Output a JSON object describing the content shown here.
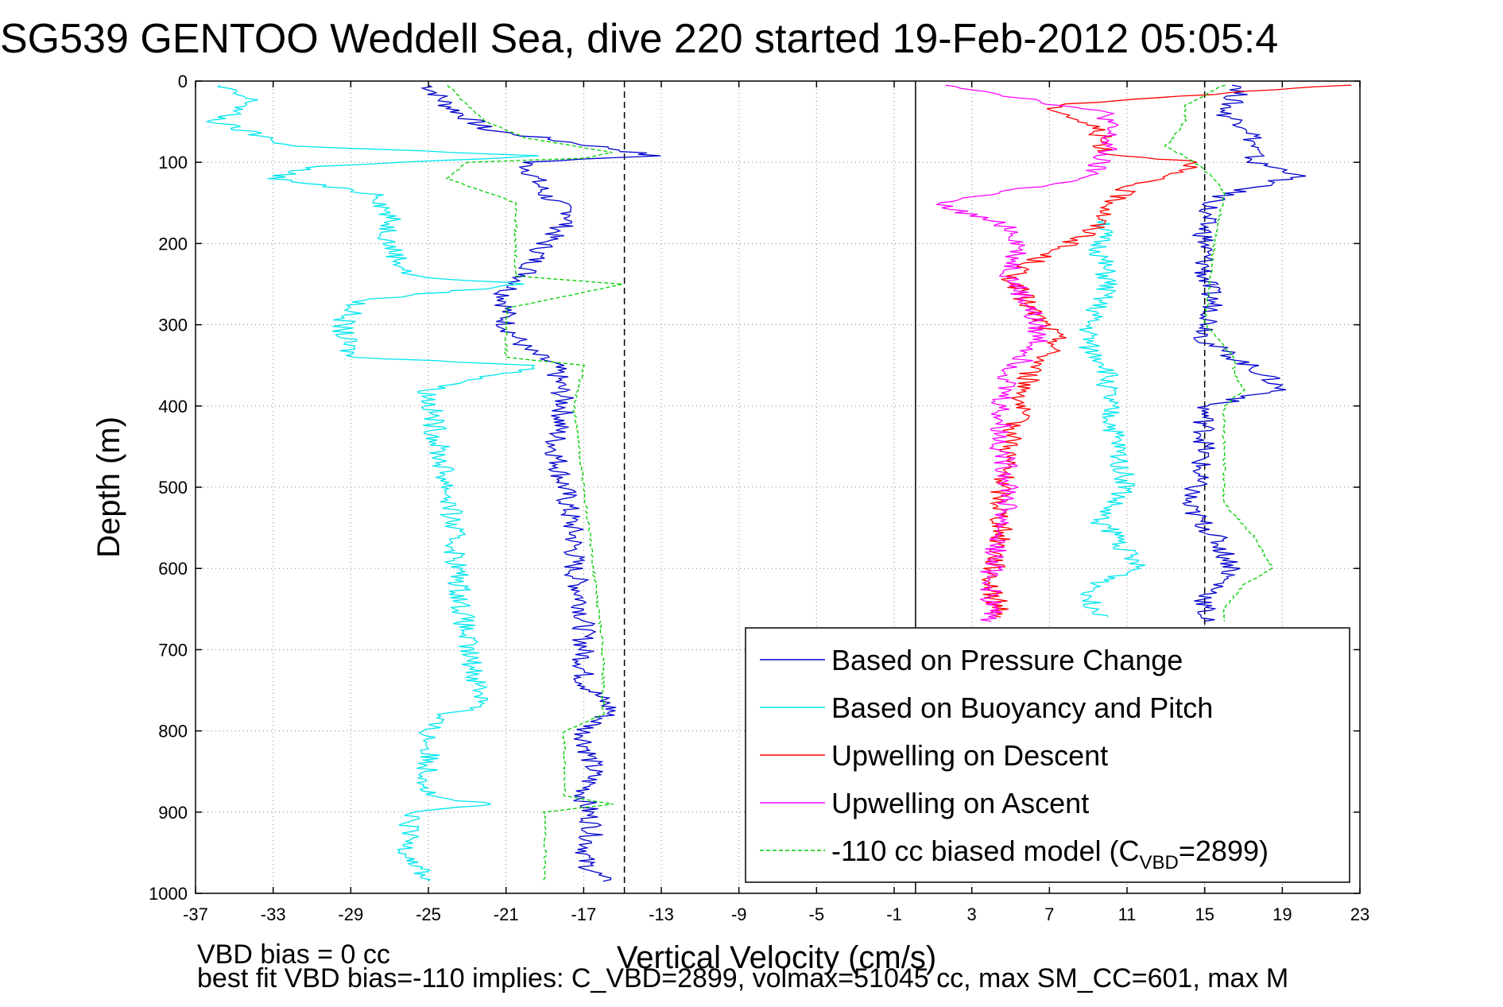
{
  "chart_data": {
    "type": "line",
    "title": "SG539 GENTOO Weddell Sea, dive 220 started 19-Feb-2012 05:05:4",
    "xlabel": "Vertical Velocity (cm/s)",
    "ylabel": "Depth (m)",
    "xlim": [
      -37,
      23
    ],
    "ylim": [
      0,
      1000
    ],
    "y_reversed": true,
    "grid": true,
    "x_ticks": [
      "-37",
      "-33",
      "-29",
      "-25",
      "-21",
      "-17",
      "-13",
      "-9",
      "-5",
      "-1",
      "3",
      "7",
      "11",
      "15",
      "19",
      "23"
    ],
    "y_ticks": [
      "0",
      "100",
      "200",
      "300",
      "400",
      "500",
      "600",
      "700",
      "800",
      "900",
      "1000"
    ],
    "reference_lines": [
      {
        "x": -14.9,
        "style": "dashed",
        "color": "#000000"
      },
      {
        "x": 0.1,
        "style": "solid",
        "color": "#000000"
      },
      {
        "x": 15,
        "style": "dashed",
        "color": "#000000"
      }
    ],
    "series": [
      {
        "name": "Based on Pressure Change",
        "color": "#0000cc",
        "style": "solid",
        "segments": [
          {
            "depth": [
              5,
              30,
              60,
              85,
              92,
              100,
              140,
              165,
              200,
              240,
              260,
              300,
              330,
              350,
              400,
              450,
              500,
              560,
              600,
              650,
              700,
              740,
              775,
              800,
              850,
              880,
              920,
              960,
              985
            ],
            "velocity": [
              -25,
              -24,
              -22,
              -15,
              -13.5,
              -20,
              -19,
              -17.5,
              -19,
              -20,
              -21,
              -21,
              -20,
              -18.5,
              -18,
              -18.5,
              -18,
              -17.5,
              -17.5,
              -17,
              -17,
              -17,
              -15.5,
              -17,
              -16.5,
              -17,
              -16.5,
              -17,
              -16
            ]
          },
          {
            "depth": [
              5,
              40,
              60,
              100,
              115,
              140,
              160,
              200,
              240,
              280,
              320,
              360,
              380,
              400,
              450,
              500,
              520,
              560,
              600,
              640,
              665
            ],
            "velocity": [
              17,
              16,
              17.5,
              17.5,
              20,
              16,
              15,
              15,
              15,
              15.5,
              15,
              18,
              19,
              15,
              15,
              14.5,
              14,
              15.5,
              16.5,
              15,
              15
            ]
          }
        ]
      },
      {
        "name": "Based on Buoyancy and Pitch",
        "color": "#00e5ee",
        "style": "solid",
        "segments": [
          {
            "depth": [
              5,
              25,
              50,
              80,
              92,
              105,
              120,
              140,
              170,
              200,
              240,
              250,
              270,
              300,
              340,
              350,
              380,
              450,
              500,
              600,
              700,
              770,
              780,
              800,
              880,
              890,
              900,
              950,
              985
            ],
            "velocity": [
              -36,
              -34,
              -36,
              -32,
              -19,
              -31,
              -33,
              -27.5,
              -27,
              -27,
              -26,
              -20,
              -28.5,
              -29.5,
              -29,
              -19,
              -25,
              -24.5,
              -24,
              -23.5,
              -23,
              -22,
              -24.5,
              -25,
              -25,
              -22,
              -26,
              -26,
              -25
            ]
          },
          {
            "depth": [
              170,
              200,
              250,
              300,
              330,
              350,
              400,
              450,
              500,
              540,
              560,
              600,
              620,
              640,
              660
            ],
            "velocity": [
              10,
              9.5,
              10,
              9,
              9,
              10,
              10,
              10.5,
              11,
              9.5,
              10.5,
              11.5,
              9.5,
              9,
              10
            ]
          }
        ]
      },
      {
        "name": "Upwelling on Descent",
        "color": "#ff0000",
        "style": "solid",
        "segments": [
          {
            "depth": [
              5,
              30,
              60,
              90,
              100,
              130,
              160,
              190,
              210,
              240,
              280,
              320,
              360,
              400,
              450,
              500,
              560,
              620,
              660
            ],
            "velocity": [
              22,
              7,
              9.5,
              10,
              15,
              11,
              10,
              9,
              7,
              5,
              6,
              7.5,
              6,
              5.5,
              5,
              4.5,
              4.5,
              4,
              4.5
            ]
          }
        ]
      },
      {
        "name": "Upwelling on Ascent",
        "color": "#ff00ff",
        "style": "solid",
        "segments": [
          {
            "depth": [
              5,
              40,
              80,
              120,
              150,
              180,
              200,
              240,
              280,
              320,
              360,
              400,
              450,
              500,
              550,
              600,
              650,
              665
            ],
            "velocity": [
              2,
              10,
              10,
              9,
              1,
              5,
              5.5,
              5,
              6,
              6.5,
              5,
              4.5,
              4.5,
              5,
              4.5,
              4,
              4,
              4
            ]
          }
        ]
      },
      {
        "name": "-110 cc biased model (C_VBD=2899)",
        "legend_label": "-110 cc biased model (C",
        "legend_sub": "VBD",
        "legend_tail": "=2899)",
        "color": "#00cc00",
        "style": "dashed",
        "segments": [
          {
            "depth": [
              5,
              30,
              50,
              70,
              88,
              95,
              100,
              120,
              150,
              180,
              200,
              240,
              250,
              280,
              340,
              350,
              400,
              500,
              600,
              700,
              780,
              800,
              850,
              880,
              890,
              900,
              950,
              985
            ],
            "velocity": [
              -24,
              -23,
              -22,
              -20,
              -15.5,
              -17,
              -23,
              -24,
              -20.5,
              -20.5,
              -20.5,
              -20.5,
              -15,
              -21,
              -21,
              -17,
              -17.5,
              -17,
              -16.5,
              -16,
              -16,
              -18,
              -18,
              -18,
              -15.5,
              -19,
              -19,
              -19
            ]
          },
          {
            "depth": [
              5,
              30,
              50,
              80,
              100,
              120,
              140,
              200,
              300,
              340,
              360,
              380,
              400,
              500,
              520,
              560,
              600,
              620,
              650,
              665
            ],
            "velocity": [
              16,
              14,
              14,
              13,
              14.5,
              15.5,
              16,
              15.5,
              15,
              16.5,
              16.5,
              17,
              16,
              16,
              16,
              17.5,
              18.5,
              17,
              16,
              16
            ]
          }
        ]
      }
    ],
    "legend": {
      "placement": "bottom-right"
    },
    "footnotes": [
      "VBD bias = 0 cc",
      "best fit VBD bias=-110 implies: C_VBD=2899, volmax=51045 cc, max SM_CC=601, max M"
    ]
  }
}
